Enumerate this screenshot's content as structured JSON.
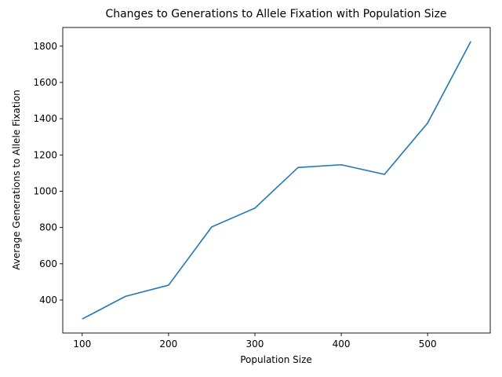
{
  "chart_data": {
    "type": "line",
    "title": "Changes to Generations to Allele Fixation with Population Size",
    "xlabel": "Population Size",
    "ylabel": "Average Generations to Allele Fixation",
    "x": [
      100,
      150,
      200,
      250,
      300,
      350,
      400,
      450,
      500,
      550
    ],
    "series": [
      {
        "values": [
          295,
          420,
          482,
          803,
          907,
          1131,
          1146,
          1093,
          1376,
          1826
        ]
      }
    ],
    "xlim": [
      77.5,
      572.5
    ],
    "ylim": [
      218,
      1903
    ],
    "xticks": [
      100,
      200,
      300,
      400,
      500
    ],
    "yticks": [
      400,
      600,
      800,
      1000,
      1200,
      1400,
      1600,
      1800
    ],
    "grid": false,
    "line_color": "#1f77b4"
  }
}
